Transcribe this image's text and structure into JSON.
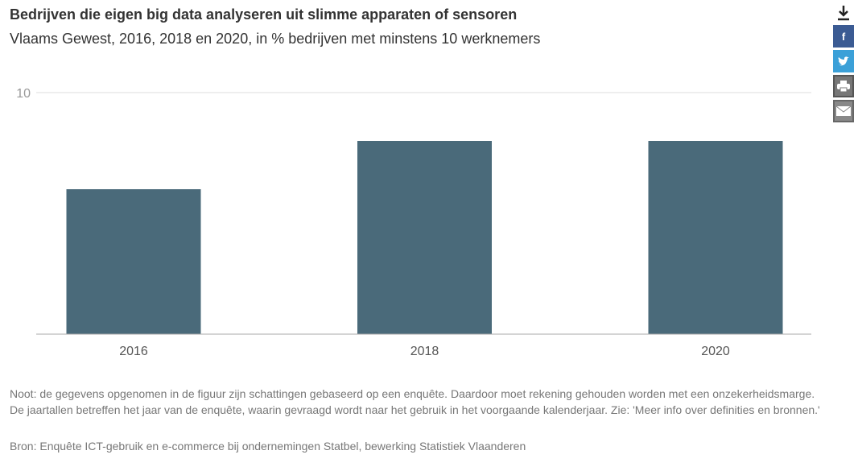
{
  "chart_data": {
    "type": "bar",
    "title": "Bedrijven die eigen big data analyseren uit slimme apparaten of sensoren",
    "subtitle": "Vlaams Gewest, 2016, 2018 en 2020, in % bedrijven met minstens 10 werknemers",
    "categories": [
      "2016",
      "2018",
      "2020"
    ],
    "values": [
      6,
      8,
      8
    ],
    "ylim": [
      0,
      10
    ],
    "yticks": [
      "10"
    ],
    "xlabel": "",
    "ylabel": "",
    "grid": true,
    "bar_color": "#4a6a7a"
  },
  "note": "Noot: de gegevens opgenomen in de figuur zijn schattingen gebaseerd op een enquête. Daardoor moet rekening gehouden worden met een onzekerheidsmarge. De jaartallen betreffen het jaar van de enquête, waarin gevraagd wordt naar het gebruik in het voorgaande kalenderjaar. Zie: 'Meer info over definities en bronnen.'",
  "source": "Bron: Enquête ICT-gebruik en e-commerce bij ondernemingen Statbel, bewerking Statistiek Vlaanderen",
  "share": {
    "facebook": "f"
  }
}
